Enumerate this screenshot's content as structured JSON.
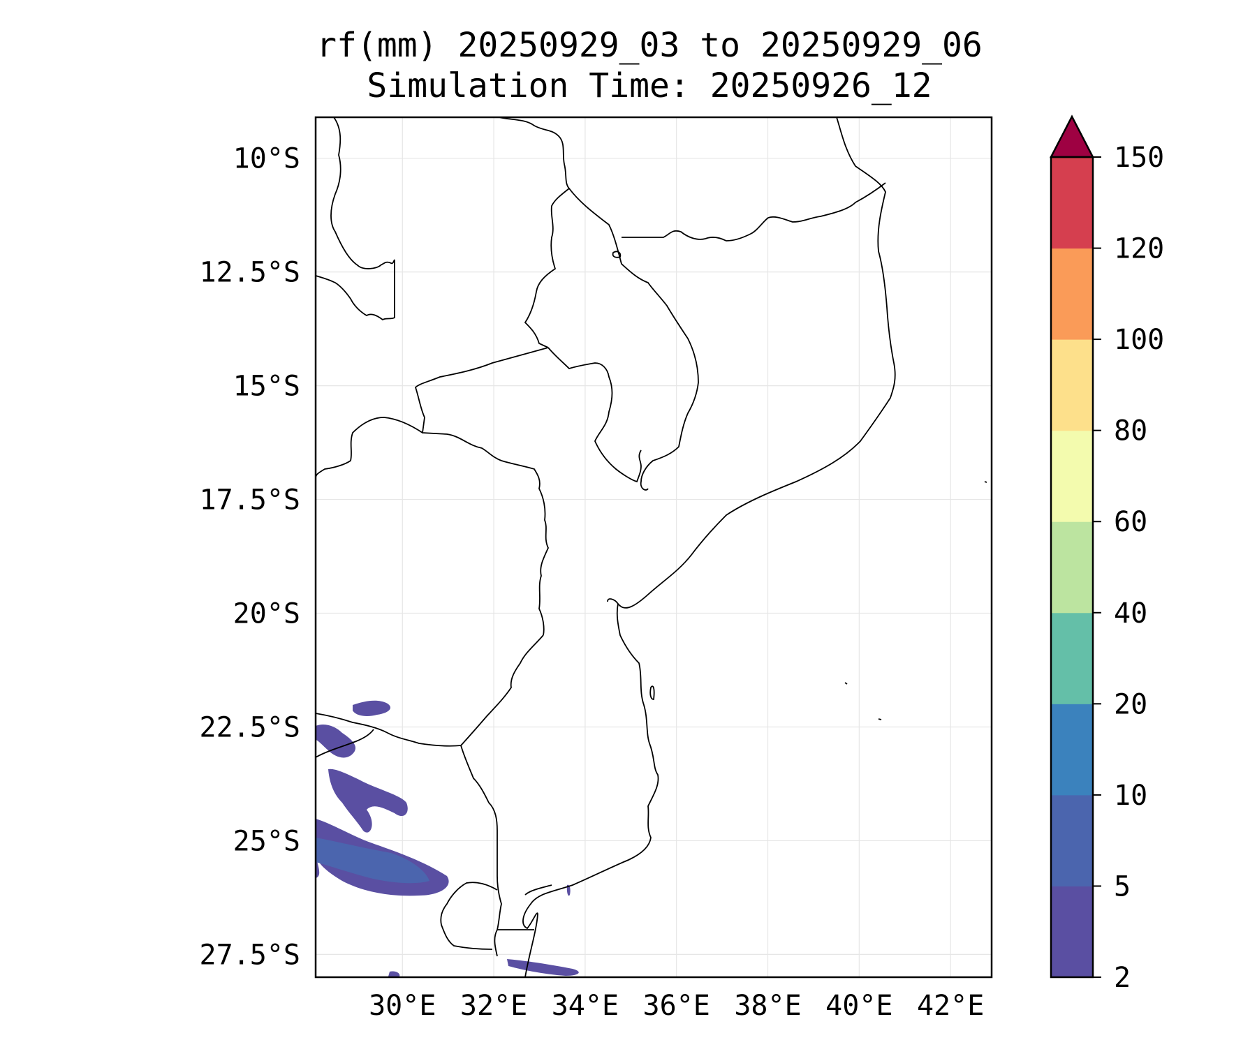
{
  "title": {
    "line1": "rf(mm) 20250929_03 to 20250929_06",
    "line2": "Simulation Time: 20250926_12"
  },
  "map": {
    "lon_range": [
      28.1,
      42.9
    ],
    "lat_range": [
      -28.0,
      -9.1
    ],
    "lat_ticks": [
      {
        "value": -10.0,
        "label": "10°S"
      },
      {
        "value": -12.5,
        "label": "12.5°S"
      },
      {
        "value": -15.0,
        "label": "15°S"
      },
      {
        "value": -17.5,
        "label": "17.5°S"
      },
      {
        "value": -20.0,
        "label": "20°S"
      },
      {
        "value": -22.5,
        "label": "22.5°S"
      },
      {
        "value": -25.0,
        "label": "25°S"
      },
      {
        "value": -27.5,
        "label": "27.5°S"
      }
    ],
    "lon_ticks": [
      {
        "value": 30,
        "label": "30°E"
      },
      {
        "value": 32,
        "label": "32°E"
      },
      {
        "value": 34,
        "label": "34°E"
      },
      {
        "value": 36,
        "label": "36°E"
      },
      {
        "value": 38,
        "label": "38°E"
      },
      {
        "value": 40,
        "label": "40°E"
      },
      {
        "value": 42,
        "label": "42°E"
      }
    ],
    "grid": true
  },
  "colorbar": {
    "levels": [
      "2",
      "5",
      "10",
      "20",
      "40",
      "60",
      "80",
      "100",
      "120",
      "150"
    ],
    "colors": [
      "#5a4fa2",
      "#4b65ae",
      "#3b82bd",
      "#64bfa8",
      "#bce4a0",
      "#f3fbae",
      "#fde08b",
      "#fa9b58",
      "#d53f4f"
    ],
    "extend_color": "#9e0142",
    "extend": "max"
  },
  "colors": {
    "coastline": "#000000",
    "frame": "#000000",
    "gridline": "#e6e6e6"
  }
}
